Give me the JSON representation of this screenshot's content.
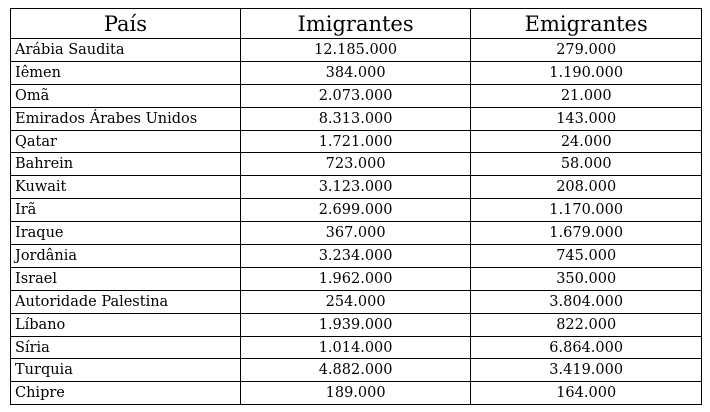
{
  "table": {
    "headers": [
      "País",
      "Imigrantes",
      "Emigrantes"
    ],
    "rows": [
      [
        "Arábia Saudita",
        "12.185.000",
        "279.000"
      ],
      [
        "Iêmen",
        "384.000",
        "1.190.000"
      ],
      [
        "Omã",
        "2.073.000",
        "21.000"
      ],
      [
        "Emirados Árabes Unidos",
        "8.313.000",
        "143.000"
      ],
      [
        "Qatar",
        "1.721.000",
        "24.000"
      ],
      [
        "Bahrein",
        "723.000",
        "58.000"
      ],
      [
        "Kuwait",
        "3.123.000",
        "208.000"
      ],
      [
        "Irã",
        "2.699.000",
        "1.170.000"
      ],
      [
        "Iraque",
        "367.000",
        "1.679.000"
      ],
      [
        "Jordânia",
        "3.234.000",
        "745.000"
      ],
      [
        "Israel",
        "1.962.000",
        "350.000"
      ],
      [
        "Autoridade Palestina",
        "254.000",
        "3.804.000"
      ],
      [
        "Líbano",
        "1.939.000",
        "822.000"
      ],
      [
        "Síria",
        "1.014.000",
        "6.864.000"
      ],
      [
        "Turquia",
        "4.882.000",
        "3.419.000"
      ],
      [
        "Chipre",
        "189.000",
        "164.000"
      ]
    ]
  }
}
